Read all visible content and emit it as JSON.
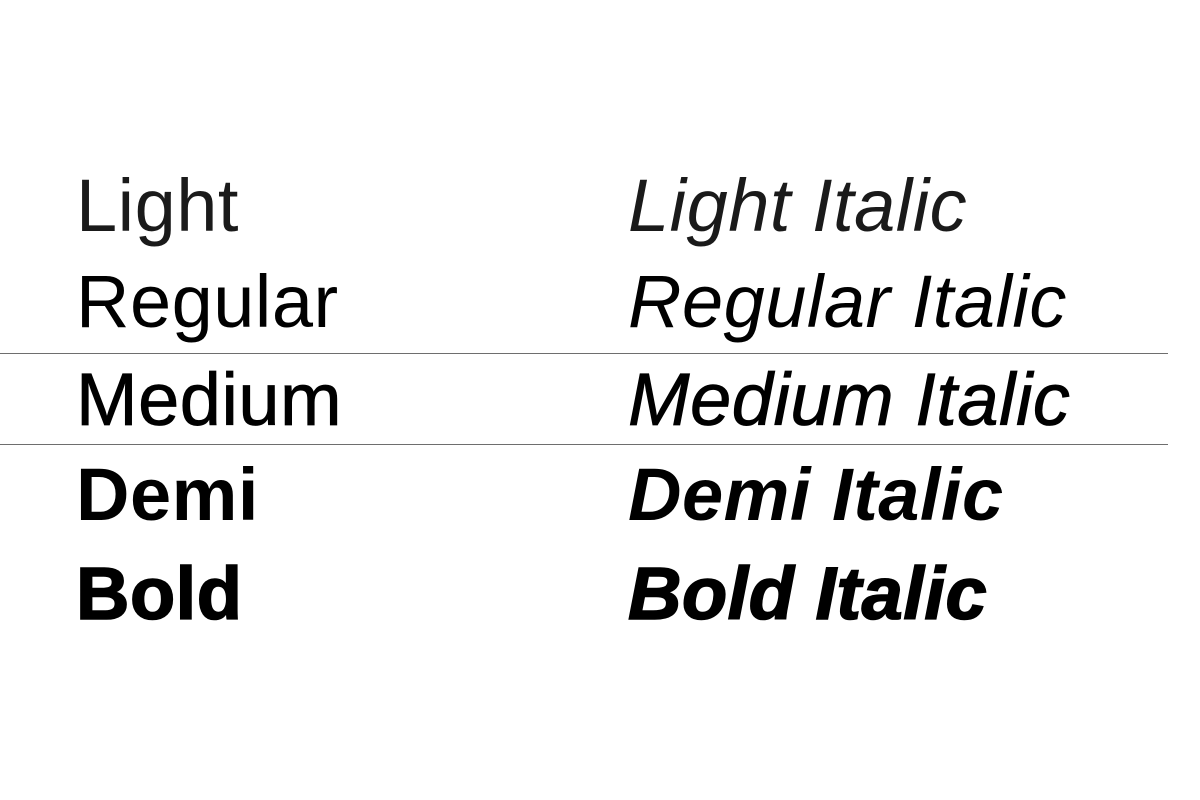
{
  "specimen": {
    "rows": [
      {
        "weight": "light",
        "upright": "Light",
        "italic": "Light Italic"
      },
      {
        "weight": "regular",
        "upright": "Regular",
        "italic": "Regular Italic"
      },
      {
        "weight": "medium",
        "upright": "Medium",
        "italic": "Medium Italic"
      },
      {
        "weight": "demi",
        "upright": "Demi",
        "italic": "Demi Italic"
      },
      {
        "weight": "bold",
        "upright": "Bold",
        "italic": "Bold Italic"
      }
    ],
    "highlighted_row": "medium",
    "colors": {
      "background": "#ffffff",
      "text": "#000000",
      "rule": "#6e6e6e"
    }
  }
}
